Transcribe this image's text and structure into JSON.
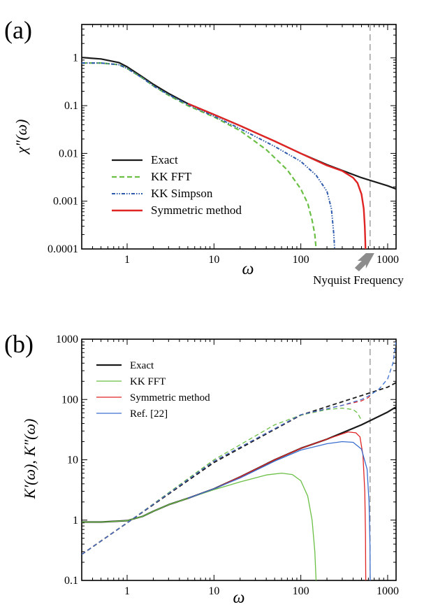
{
  "chart_data": [
    {
      "type": "line",
      "panel_label": "(a)",
      "xlabel": "ω",
      "ylabel": "χ″(ω)",
      "x_scale": "log",
      "y_scale": "log",
      "xlim": [
        0.3,
        1250
      ],
      "ylim": [
        0.0001,
        5
      ],
      "x_ticks": [
        {
          "v": 1,
          "label": "1"
        },
        {
          "v": 10,
          "label": "10"
        },
        {
          "v": 100,
          "label": "100"
        },
        {
          "v": 1000,
          "label": "1000"
        }
      ],
      "y_ticks": [
        {
          "v": 1,
          "label": "1"
        },
        {
          "v": 0.1,
          "label": "0.1"
        },
        {
          "v": 0.01,
          "label": "0.01"
        },
        {
          "v": 0.001,
          "label": "0.001"
        },
        {
          "v": 0.0001,
          "label": "0.0001"
        }
      ],
      "vline": 628,
      "annotation": {
        "text": "Nyquist Frequency",
        "x": 628
      },
      "legend_position": "lower-left",
      "series": [
        {
          "name": "Exact",
          "color": "#1a1a1a",
          "dash": "",
          "width": 2.2,
          "x": [
            0.3,
            0.5,
            0.8,
            1,
            1.5,
            2,
            3,
            5,
            10,
            20,
            50,
            100,
            200,
            500,
            1000,
            1250
          ],
          "y": [
            1.02,
            0.95,
            0.8,
            0.65,
            0.4,
            0.28,
            0.18,
            0.11,
            0.065,
            0.038,
            0.018,
            0.01,
            0.0058,
            0.0031,
            0.0021,
            0.0018
          ]
        },
        {
          "name": "KK FFT",
          "color": "#6abf45",
          "dash": "7,4",
          "width": 2.2,
          "x": [
            0.3,
            0.5,
            0.8,
            1,
            1.5,
            2,
            3,
            5,
            10,
            20,
            40,
            70,
            100,
            120,
            135,
            145,
            150
          ],
          "y": [
            0.78,
            0.78,
            0.72,
            0.6,
            0.38,
            0.26,
            0.165,
            0.1,
            0.058,
            0.03,
            0.012,
            0.0045,
            0.0018,
            0.0009,
            0.0004,
            0.0002,
            0.0001
          ]
        },
        {
          "name": "KK  Simpson",
          "color": "#2e5aac",
          "dash": "5,2,1.5,2,1.5,2",
          "width": 2,
          "x": [
            0.3,
            0.5,
            0.8,
            1,
            1.5,
            2,
            3,
            5,
            10,
            20,
            50,
            100,
            150,
            200,
            225,
            240,
            245
          ],
          "y": [
            0.78,
            0.78,
            0.72,
            0.6,
            0.38,
            0.26,
            0.17,
            0.105,
            0.06,
            0.033,
            0.014,
            0.0068,
            0.0035,
            0.0016,
            0.0007,
            0.0002,
            0.0001
          ]
        },
        {
          "name": "Symmetric method",
          "color": "#e02424",
          "dash": "",
          "width": 2.4,
          "x": [
            5,
            10,
            20,
            50,
            100,
            200,
            300,
            400,
            450,
            500,
            530,
            545,
            552,
            555
          ],
          "y": [
            0.11,
            0.065,
            0.038,
            0.018,
            0.01,
            0.0056,
            0.0043,
            0.0031,
            0.0024,
            0.0014,
            0.0007,
            0.0003,
            0.00015,
            0.0001
          ]
        }
      ]
    },
    {
      "type": "line",
      "panel_label": "(b)",
      "xlabel": "ω",
      "ylabel": "K′(ω), K″(ω)",
      "x_scale": "log",
      "y_scale": "log",
      "xlim": [
        0.3,
        1250
      ],
      "ylim": [
        0.1,
        1000
      ],
      "x_ticks": [
        {
          "v": 1,
          "label": "1"
        },
        {
          "v": 10,
          "label": "10"
        },
        {
          "v": 100,
          "label": "100"
        },
        {
          "v": 1000,
          "label": "1000"
        }
      ],
      "y_ticks": [
        {
          "v": 1000,
          "label": "1000"
        },
        {
          "v": 100,
          "label": "100"
        },
        {
          "v": 10,
          "label": "10"
        },
        {
          "v": 1,
          "label": "1"
        },
        {
          "v": 0.1,
          "label": "0.1"
        }
      ],
      "vline": 628,
      "legend_position": "top-left",
      "series": [
        {
          "name": "Exact",
          "color": "#1a1a1a",
          "dash": "",
          "width": 2.2,
          "x": [
            0.3,
            0.5,
            1,
            1.5,
            2,
            3,
            5,
            10,
            20,
            50,
            100,
            200,
            500,
            1000,
            1250
          ],
          "y": [
            0.93,
            0.93,
            0.98,
            1.15,
            1.4,
            1.8,
            2.3,
            3.3,
            5.2,
            10,
            15.5,
            22,
            38,
            62,
            75
          ]
        },
        {
          "name": "KK FFT",
          "color": "#6abf45",
          "dash": "",
          "width": 1.3,
          "x": [
            0.3,
            0.5,
            1,
            1.5,
            2,
            3,
            5,
            10,
            20,
            40,
            60,
            80,
            100,
            120,
            135,
            145,
            150
          ],
          "y": [
            0.93,
            0.93,
            0.98,
            1.15,
            1.4,
            1.8,
            2.3,
            3.2,
            4.3,
            5.6,
            6,
            5.7,
            4.5,
            2.5,
            1,
            0.3,
            0.1
          ]
        },
        {
          "name": "Symmetric method",
          "color": "#e02424",
          "dash": "",
          "width": 1.3,
          "x": [
            5,
            10,
            20,
            50,
            100,
            200,
            350,
            430,
            480,
            520,
            545,
            555,
            560
          ],
          "y": [
            2.3,
            3.3,
            5.2,
            10,
            15.5,
            22,
            29,
            28,
            24,
            12,
            3,
            0.6,
            0.1
          ]
        },
        {
          "name": "Ref. [22]",
          "color": "#3a6fd0",
          "dash": "",
          "width": 1.3,
          "x": [
            5,
            10,
            20,
            50,
            100,
            200,
            300,
            400,
            500,
            580,
            610,
            625,
            630
          ],
          "y": [
            2.3,
            3.3,
            5.0,
            9.5,
            14.5,
            18.5,
            20,
            19.5,
            15,
            7,
            2,
            0.4,
            0.1
          ]
        },
        {
          "name": "",
          "color": "#1a1a1a",
          "dash": "6,4",
          "width": 1.8,
          "x": [
            0.3,
            1,
            10,
            100,
            1000,
            1250
          ],
          "y": [
            0.27,
            0.9,
            9,
            55,
            160,
            190
          ]
        },
        {
          "name": "",
          "color": "#6abf45",
          "dash": "6,4",
          "width": 1.3,
          "x": [
            0.3,
            1,
            10,
            50,
            100,
            200,
            300,
            400,
            450,
            500
          ],
          "y": [
            0.27,
            0.9,
            10,
            38,
            55,
            68,
            72,
            68,
            60,
            45
          ]
        },
        {
          "name": "",
          "color": "#e02424",
          "dash": "6,4",
          "width": 1.3,
          "x": [
            0.3,
            1,
            10,
            100,
            300,
            500,
            600,
            628
          ],
          "y": [
            0.27,
            0.9,
            9.5,
            56,
            80,
            95,
            108,
            115
          ]
        },
        {
          "name": "",
          "color": "#3a6fd0",
          "dash": "6,4",
          "width": 1.3,
          "x": [
            0.3,
            1,
            10,
            100,
            300,
            500,
            628,
            800,
            1000,
            1150,
            1250
          ],
          "y": [
            0.27,
            0.9,
            9.5,
            56,
            80,
            100,
            118,
            150,
            220,
            400,
            900
          ]
        }
      ]
    }
  ]
}
